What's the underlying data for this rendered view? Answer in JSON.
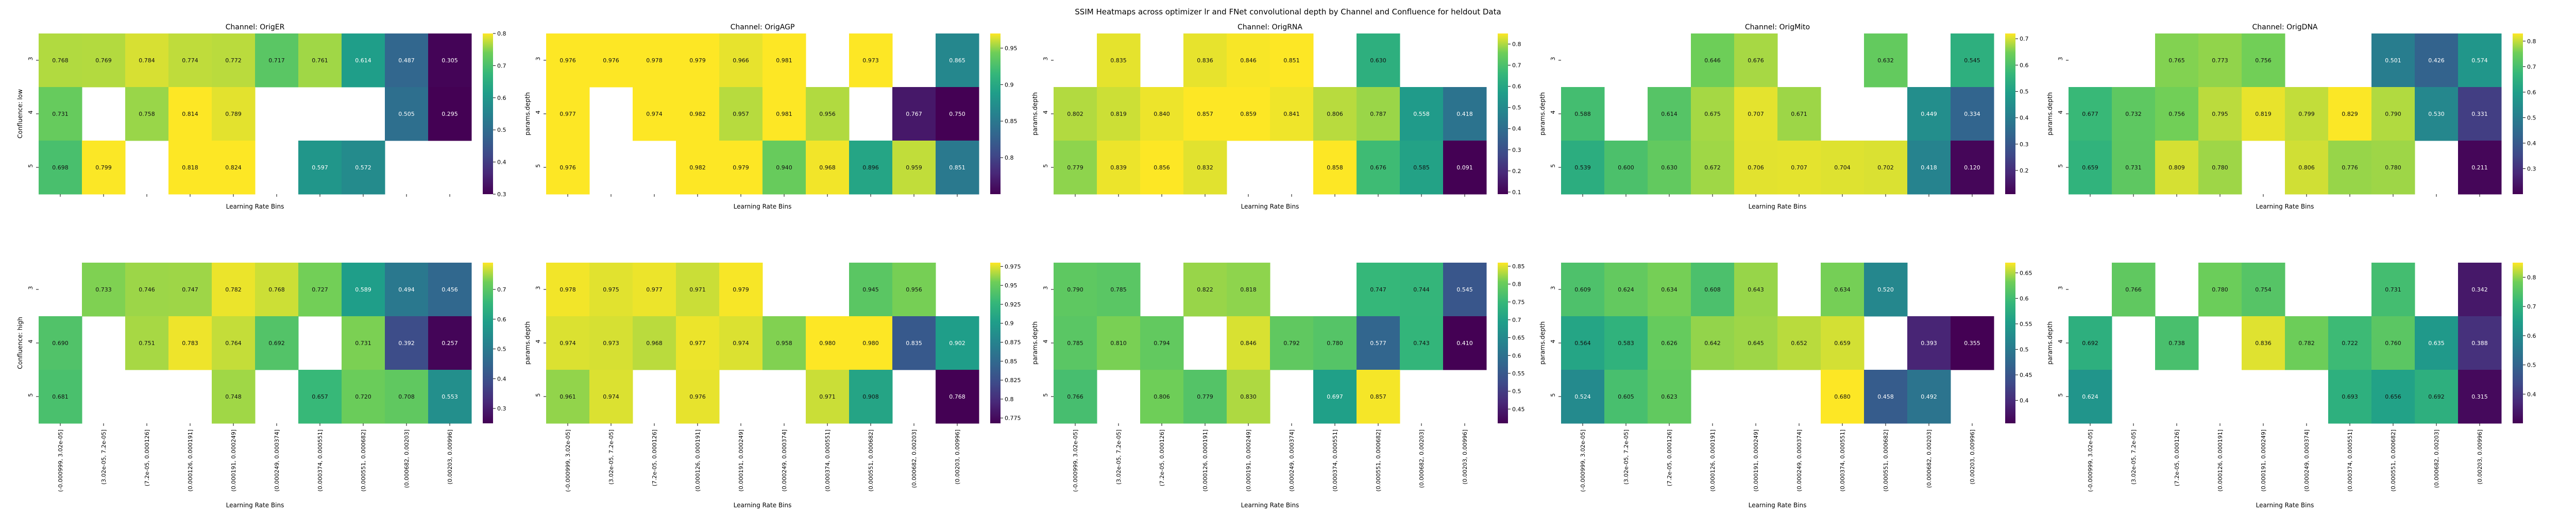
{
  "figure_title": "SSIM Heatmaps across optimizer lr and FNet convolutional depth by Channel and Confluence for heldout Data",
  "xlabel": "Learning Rate Bins",
  "row_labels": [
    "Confluence: low",
    "Confluence: high"
  ],
  "lr_bins": [
    "(-0.000999, 3.02e-05]",
    "(3.02e-05, 7.2e-05]",
    "(7.2e-05, 0.000126]",
    "(0.000126, 0.000191]",
    "(0.000191, 0.000249]",
    "(0.000249, 0.000374]",
    "(0.000374, 0.000551]",
    "(0.000551, 0.000682]",
    "(0.000682, 0.00203]",
    "(0.00203, 0.00996]"
  ],
  "depth_ticks": [
    "3",
    "4",
    "5"
  ],
  "chart_data": [
    {
      "type": "heatmap",
      "title": "Channel: OrigER",
      "confluence": "low",
      "ylabel": "Confluence: low",
      "vmin": 0.3,
      "vmax": 0.8,
      "cbar_ticks": [
        0.3,
        0.4,
        0.5,
        0.6,
        0.7,
        0.8
      ],
      "show_xticklabels": false,
      "values": [
        [
          0.768,
          0.769,
          0.784,
          0.774,
          0.772,
          0.717,
          0.761,
          0.614,
          0.487,
          0.305
        ],
        [
          0.731,
          null,
          0.758,
          0.814,
          0.789,
          null,
          null,
          null,
          0.505,
          0.295
        ],
        [
          0.698,
          0.799,
          null,
          0.818,
          0.824,
          null,
          0.597,
          0.572,
          null,
          null
        ]
      ]
    },
    {
      "type": "heatmap",
      "title": "Channel: OrigAGP",
      "confluence": "low",
      "ylabel": "params.depth",
      "vmin": 0.75,
      "vmax": 0.97,
      "cbar_ticks": [
        0.8,
        0.85,
        0.9,
        0.95
      ],
      "show_xticklabels": false,
      "values": [
        [
          0.976,
          0.976,
          0.978,
          0.979,
          0.966,
          0.981,
          null,
          0.973,
          null,
          0.865
        ],
        [
          0.977,
          null,
          0.974,
          0.982,
          0.957,
          0.981,
          0.956,
          null,
          0.767,
          0.75
        ],
        [
          0.976,
          null,
          null,
          0.982,
          0.979,
          0.94,
          0.968,
          0.896,
          0.959,
          0.851
        ]
      ]
    },
    {
      "type": "heatmap",
      "title": "Channel: OrigRNA",
      "confluence": "low",
      "ylabel": "params.depth",
      "vmin": 0.09,
      "vmax": 0.85,
      "cbar_ticks": [
        0.1,
        0.2,
        0.3,
        0.4,
        0.5,
        0.6,
        0.7,
        0.8
      ],
      "show_xticklabels": false,
      "values": [
        [
          null,
          0.835,
          null,
          0.836,
          0.846,
          0.851,
          null,
          0.63,
          null,
          null
        ],
        [
          0.802,
          0.819,
          0.84,
          0.857,
          0.859,
          0.841,
          0.806,
          0.787,
          0.558,
          0.418
        ],
        [
          0.779,
          0.839,
          0.856,
          0.832,
          null,
          null,
          0.858,
          0.676,
          0.585,
          0.091
        ]
      ]
    },
    {
      "type": "heatmap",
      "title": "Channel: OrigMito",
      "confluence": "low",
      "ylabel": "params.depth",
      "vmin": 0.11,
      "vmax": 0.72,
      "cbar_ticks": [
        0.2,
        0.3,
        0.4,
        0.5,
        0.6,
        0.7
      ],
      "show_xticklabels": false,
      "values": [
        [
          null,
          null,
          null,
          0.646,
          0.676,
          null,
          null,
          0.632,
          null,
          0.545
        ],
        [
          0.588,
          null,
          0.614,
          0.675,
          0.707,
          0.671,
          null,
          null,
          0.449,
          0.334
        ],
        [
          0.539,
          0.6,
          0.63,
          0.672,
          0.706,
          0.707,
          0.704,
          0.702,
          0.418,
          0.12
        ]
      ]
    },
    {
      "type": "heatmap",
      "title": "Channel: OrigDNA",
      "confluence": "low",
      "ylabel": "params.depth",
      "vmin": 0.2,
      "vmax": 0.83,
      "cbar_ticks": [
        0.3,
        0.4,
        0.5,
        0.6,
        0.7,
        0.8
      ],
      "show_xticklabels": false,
      "values": [
        [
          null,
          null,
          0.765,
          0.773,
          0.756,
          null,
          null,
          0.501,
          0.426,
          0.574
        ],
        [
          0.677,
          0.732,
          0.756,
          0.795,
          0.819,
          0.799,
          0.829,
          0.79,
          0.53,
          0.331
        ],
        [
          0.659,
          0.731,
          0.809,
          0.78,
          null,
          0.806,
          0.776,
          0.78,
          null,
          0.211
        ]
      ]
    },
    {
      "type": "heatmap",
      "title": "",
      "confluence": "high",
      "ylabel": "Confluence: high",
      "vmin": 0.25,
      "vmax": 0.79,
      "cbar_ticks": [
        0.3,
        0.4,
        0.5,
        0.6,
        0.7
      ],
      "show_xticklabels": true,
      "values": [
        [
          null,
          0.733,
          0.746,
          0.747,
          0.782,
          0.768,
          0.727,
          0.589,
          0.494,
          0.456
        ],
        [
          0.69,
          null,
          0.751,
          0.783,
          0.764,
          0.692,
          null,
          0.731,
          0.392,
          0.257
        ],
        [
          0.681,
          null,
          null,
          null,
          0.748,
          null,
          0.657,
          0.72,
          0.708,
          0.553
        ]
      ]
    },
    {
      "type": "heatmap",
      "title": "",
      "confluence": "high",
      "ylabel": "params.depth",
      "vmin": 0.768,
      "vmax": 0.98,
      "cbar_ticks": [
        0.775,
        0.8,
        0.825,
        0.85,
        0.875,
        0.9,
        0.925,
        0.95,
        0.975
      ],
      "show_xticklabels": true,
      "values": [
        [
          0.978,
          0.975,
          0.977,
          0.971,
          0.979,
          null,
          null,
          0.945,
          0.956,
          null
        ],
        [
          0.974,
          0.973,
          0.968,
          0.977,
          0.974,
          0.958,
          0.98,
          0.98,
          0.835,
          0.902
        ],
        [
          0.961,
          0.974,
          null,
          0.976,
          null,
          null,
          0.971,
          0.908,
          null,
          0.768
        ]
      ]
    },
    {
      "type": "heatmap",
      "title": "",
      "confluence": "high",
      "ylabel": "params.depth",
      "vmin": 0.41,
      "vmax": 0.86,
      "cbar_ticks": [
        0.45,
        0.5,
        0.55,
        0.6,
        0.65,
        0.7,
        0.75,
        0.8,
        0.85
      ],
      "show_xticklabels": true,
      "values": [
        [
          0.79,
          0.785,
          null,
          0.822,
          0.818,
          null,
          null,
          0.747,
          0.744,
          0.545
        ],
        [
          0.785,
          0.81,
          0.794,
          null,
          0.846,
          0.792,
          0.78,
          0.577,
          0.743,
          0.41
        ],
        [
          0.766,
          null,
          0.806,
          0.779,
          0.83,
          null,
          0.697,
          0.857,
          null,
          null
        ]
      ]
    },
    {
      "type": "heatmap",
      "title": "",
      "confluence": "high",
      "ylabel": "params.depth",
      "vmin": 0.355,
      "vmax": 0.67,
      "cbar_ticks": [
        0.4,
        0.45,
        0.5,
        0.55,
        0.6,
        0.65
      ],
      "show_xticklabels": true,
      "values": [
        [
          0.609,
          0.624,
          0.634,
          0.608,
          0.643,
          null,
          0.634,
          0.52,
          null,
          null
        ],
        [
          0.564,
          0.583,
          0.626,
          0.642,
          0.645,
          0.652,
          0.659,
          null,
          0.393,
          0.355
        ],
        [
          0.524,
          0.605,
          0.623,
          null,
          null,
          null,
          0.68,
          0.458,
          0.492,
          null
        ]
      ]
    },
    {
      "type": "heatmap",
      "title": "",
      "confluence": "high",
      "ylabel": "params.depth",
      "vmin": 0.3,
      "vmax": 0.85,
      "cbar_ticks": [
        0.4,
        0.5,
        0.6,
        0.7,
        0.8
      ],
      "show_xticklabels": true,
      "values": [
        [
          null,
          0.766,
          null,
          0.78,
          0.754,
          null,
          null,
          0.731,
          null,
          0.342
        ],
        [
          0.692,
          null,
          0.738,
          null,
          0.836,
          0.782,
          0.722,
          0.76,
          0.635,
          0.388
        ],
        [
          0.624,
          null,
          null,
          null,
          null,
          null,
          0.693,
          0.656,
          0.692,
          0.315
        ]
      ]
    }
  ]
}
